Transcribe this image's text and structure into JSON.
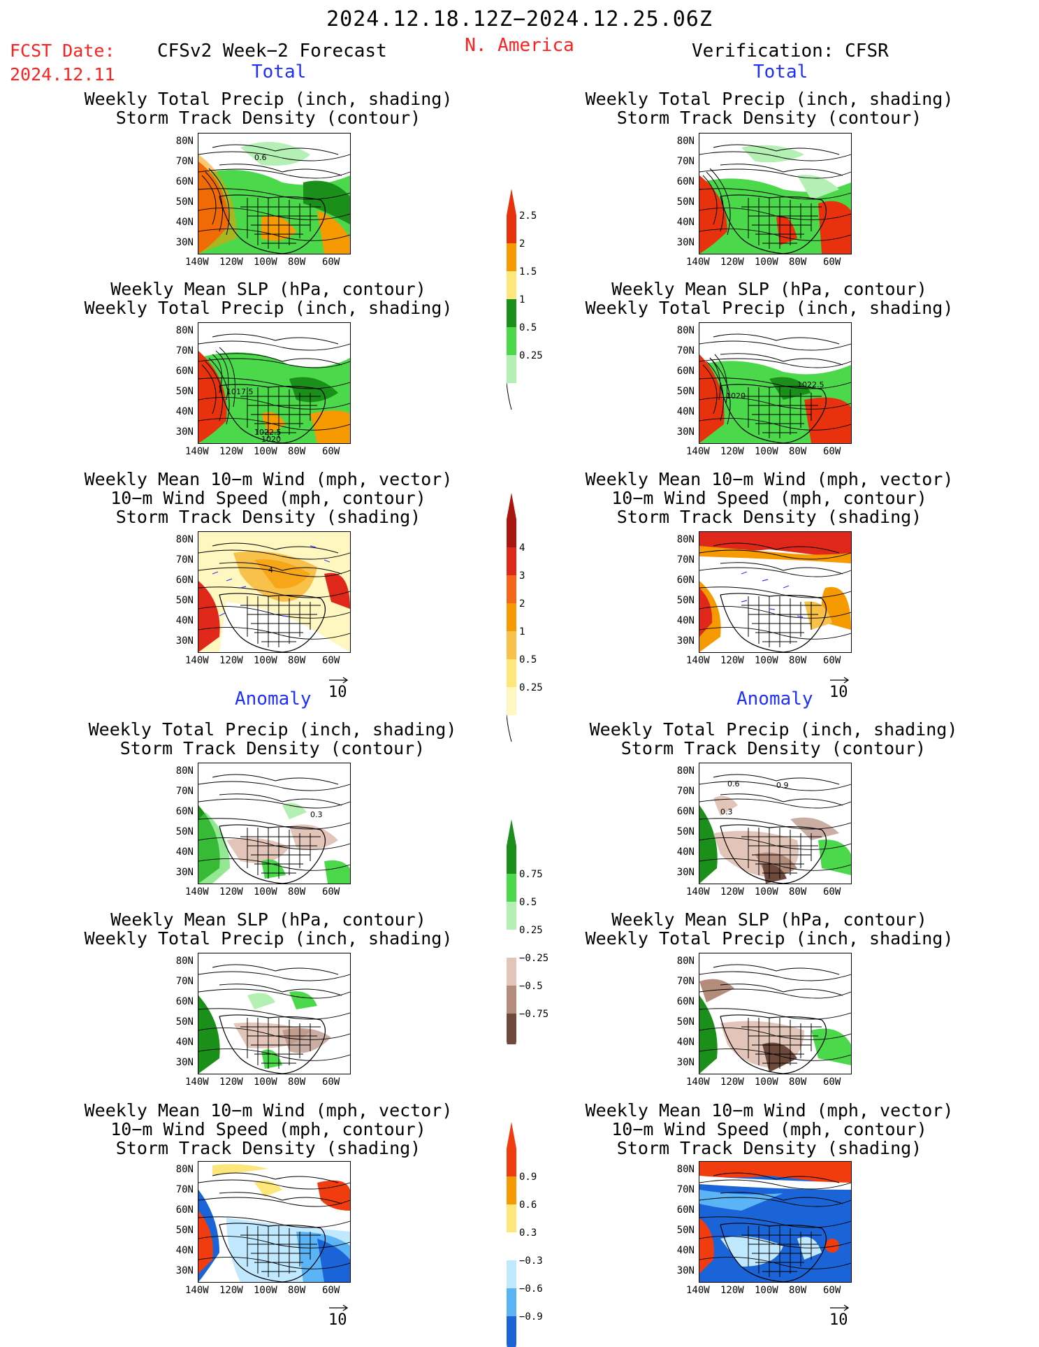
{
  "header": {
    "period": "2024.12.18.12Z−2024.12.25.06Z",
    "region": "N. America",
    "fcst_label": "FCST Date:",
    "fcst_date": "2024.12.11",
    "left_title": "CFSv2 Week−2 Forecast",
    "right_title": "Verification: CFSR"
  },
  "sections": {
    "total": "Total",
    "anomaly": "Anomaly"
  },
  "panel_titles": {
    "precip_storm": [
      "Weekly Total Precip (inch, shading)",
      "Storm Track Density (contour)"
    ],
    "slp_precip": [
      "Weekly Mean SLP (hPa, contour)",
      "Weekly Total Precip (inch, shading)"
    ],
    "wind_storm": [
      "Weekly Mean 10−m Wind (mph, vector)",
      "10−m Wind Speed (mph, contour)",
      "Storm Track Density (shading)"
    ]
  },
  "axes": {
    "lat_ticks": [
      "80N",
      "70N",
      "60N",
      "50N",
      "40N",
      "30N"
    ],
    "lon_ticks": [
      "140W",
      "120W",
      "100W",
      "80W",
      "60W"
    ]
  },
  "vector_ref": "10",
  "colorbars": {
    "total_precip": {
      "labels": [
        "2.5",
        "2",
        "1.5",
        "1",
        "0.5",
        "0.25"
      ],
      "colors": [
        "#e8320e",
        "#f59a00",
        "#fde67a",
        "#1a8f1a",
        "#4bd84b",
        "#b4f0b4"
      ]
    },
    "total_storm": {
      "labels": [
        "4",
        "3",
        "2",
        "1",
        "0.5",
        "0.25"
      ],
      "colors": [
        "#a8160e",
        "#e0281a",
        "#f5651a",
        "#f59a00",
        "#f8c24a",
        "#fde67a",
        "#fff6c0"
      ]
    },
    "anom_precip": {
      "labels": [
        "0.75",
        "0.5",
        "0.25",
        "−0.25",
        "−0.5",
        "−0.75"
      ],
      "colors": [
        "#1a8f1a",
        "#4bd84b",
        "#b4f0b4",
        "#ffffff",
        "#e2c4b8",
        "#b48c7c",
        "#6e4a3c"
      ]
    },
    "anom_storm": {
      "labels": [
        "0.9",
        "0.6",
        "0.3",
        "−0.3",
        "−0.6",
        "−0.9"
      ],
      "colors": [
        "#f03c0e",
        "#f59a00",
        "#fde67a",
        "#ffffff",
        "#c0e8ff",
        "#5ab4f5",
        "#1a64d8"
      ]
    }
  },
  "map_labels": {
    "f_precip": "0.6",
    "f_slp_a": "1017.5",
    "f_slp_b": "1022.5",
    "f_slp_c": "1020",
    "f_wind": "4",
    "v_slp_a": "1020",
    "v_slp_b": "1022.5",
    "fa_precip": "0.3",
    "va_precip_a": "0.6",
    "va_precip_b": "0.9",
    "va_precip_c": "0.3"
  }
}
